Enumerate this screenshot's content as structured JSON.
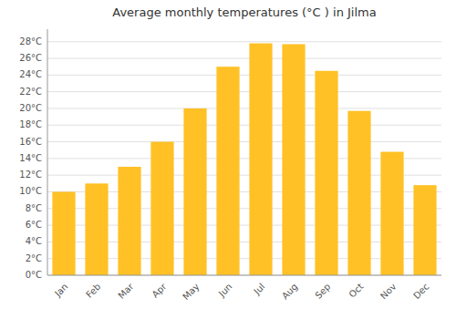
{
  "chart_data": {
    "type": "bar",
    "title": "Average monthly temperatures (°C ) in Jilma",
    "categories": [
      "Jan",
      "Feb",
      "Mar",
      "Apr",
      "May",
      "Jun",
      "Jul",
      "Aug",
      "Sep",
      "Oct",
      "Nov",
      "Dec"
    ],
    "values": [
      10,
      11,
      13,
      16,
      20,
      25,
      27.8,
      27.7,
      24.5,
      19.7,
      14.8,
      10.8
    ],
    "color": "#FFC125",
    "ylim": [
      0,
      29.5
    ],
    "yticks": [
      {
        "value": 0,
        "label": "0°C"
      },
      {
        "value": 2,
        "label": "2°C"
      },
      {
        "value": 4,
        "label": "4°C"
      },
      {
        "value": 6,
        "label": "6°C"
      },
      {
        "value": 8,
        "label": "8°C"
      },
      {
        "value": 10,
        "label": "10°C"
      },
      {
        "value": 12,
        "label": "12°C"
      },
      {
        "value": 14,
        "label": "14°C"
      },
      {
        "value": 16,
        "label": "16°C"
      },
      {
        "value": 18,
        "label": "18°C"
      },
      {
        "value": 20,
        "label": "20°C"
      },
      {
        "value": 22,
        "label": "22°C"
      },
      {
        "value": 24,
        "label": "24°C"
      },
      {
        "value": 26,
        "label": "26°C"
      },
      {
        "value": 28,
        "label": "28°C"
      }
    ],
    "grid": true
  }
}
